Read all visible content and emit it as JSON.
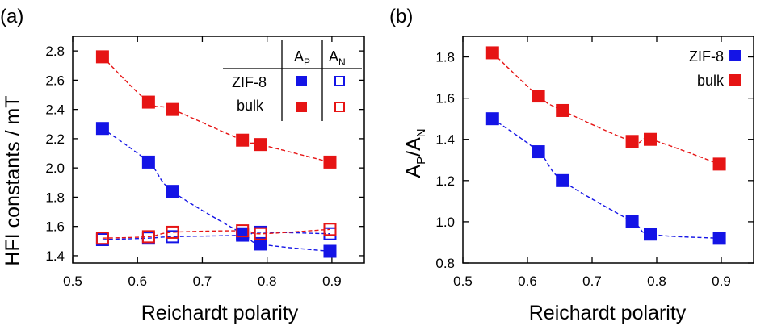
{
  "chart_data": [
    {
      "type": "scatter",
      "panel_label": "(a)",
      "xlabel": "Reichardt polarity",
      "ylabel": "HFI constants / mT",
      "xlim": [
        0.5,
        0.95
      ],
      "ylim": [
        1.35,
        2.9
      ],
      "xticks": [
        "0.5",
        "0.6",
        "0.7",
        "0.8",
        "0.9"
      ],
      "yticks": [
        "1.4",
        "1.6",
        "1.8",
        "2.0",
        "2.2",
        "2.4",
        "2.6",
        "2.8"
      ],
      "legend_table": {
        "col_headers": [
          "A",
          "A"
        ],
        "col_subscripts": [
          "P",
          "N"
        ],
        "row_labels": [
          "ZIF-8",
          "bulk"
        ],
        "placement": "top-right"
      },
      "series": [
        {
          "name": "ZIF-8 AP",
          "color": "#1414e6",
          "filled": true,
          "x": [
            0.546,
            0.617,
            0.654,
            0.762,
            0.79,
            0.897
          ],
          "y": [
            2.27,
            2.04,
            1.84,
            1.55,
            1.48,
            1.43
          ]
        },
        {
          "name": "bulk AP",
          "color": "#e61414",
          "filled": true,
          "x": [
            0.546,
            0.617,
            0.654,
            0.762,
            0.79,
            0.897
          ],
          "y": [
            2.76,
            2.45,
            2.4,
            2.19,
            2.16,
            2.04
          ]
        },
        {
          "name": "ZIF-8 AN",
          "color": "#1414e6",
          "filled": false,
          "x": [
            0.546,
            0.617,
            0.654,
            0.762,
            0.79,
            0.897
          ],
          "y": [
            1.51,
            1.52,
            1.53,
            1.54,
            1.56,
            1.55
          ]
        },
        {
          "name": "bulk AN",
          "color": "#e61414",
          "filled": false,
          "x": [
            0.546,
            0.617,
            0.654,
            0.762,
            0.79,
            0.897
          ],
          "y": [
            1.52,
            1.53,
            1.56,
            1.57,
            1.55,
            1.58
          ]
        }
      ]
    },
    {
      "type": "scatter",
      "panel_label": "(b)",
      "xlabel": "Reichardt polarity",
      "ylabel": "A",
      "ylabel_parts": {
        "p": "P",
        "slash": "/A",
        "n": "N"
      },
      "xlim": [
        0.5,
        0.95
      ],
      "ylim": [
        0.8,
        1.9
      ],
      "xticks": [
        "0.5",
        "0.6",
        "0.7",
        "0.8",
        "0.9"
      ],
      "yticks": [
        "0.8",
        "1.0",
        "1.2",
        "1.4",
        "1.6",
        "1.8"
      ],
      "legend": {
        "entries": [
          "ZIF-8",
          "bulk"
        ],
        "placement": "top-right"
      },
      "series": [
        {
          "name": "ZIF-8",
          "color": "#1414e6",
          "filled": true,
          "x": [
            0.546,
            0.617,
            0.654,
            0.762,
            0.79,
            0.897
          ],
          "y": [
            1.5,
            1.34,
            1.2,
            1.0,
            0.94,
            0.92
          ]
        },
        {
          "name": "bulk",
          "color": "#e61414",
          "filled": true,
          "x": [
            0.546,
            0.617,
            0.654,
            0.762,
            0.79,
            0.897
          ],
          "y": [
            1.82,
            1.61,
            1.54,
            1.39,
            1.4,
            1.28
          ]
        }
      ]
    }
  ]
}
